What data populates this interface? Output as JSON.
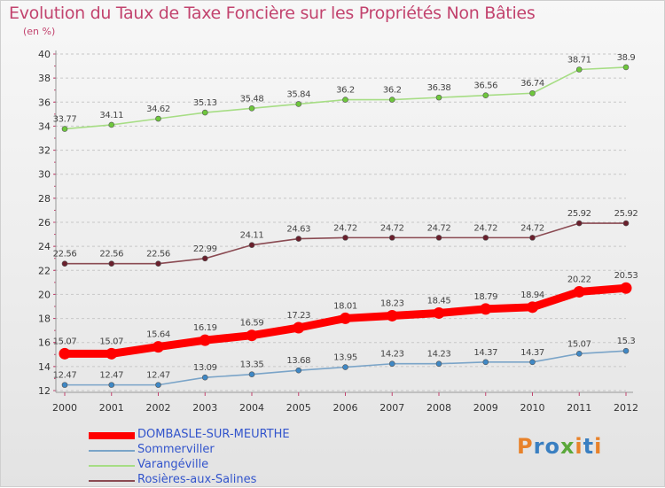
{
  "header": {
    "title": "Evolution du Taux de Taxe Foncière sur les Propriétés Non Bâties",
    "unit": "(en %)"
  },
  "logo": {
    "text": "Proxiti",
    "colors": [
      "#e8822a",
      "#3a7fc1",
      "#3a7fc1",
      "#5aa83a",
      "#e8822a",
      "#3a7fc1",
      "#e8822a"
    ]
  },
  "chart_data": {
    "type": "line",
    "title": "Evolution du Taux de Taxe Foncière sur les Propriétés Non Bâties",
    "ylabel": "(en %)",
    "xlabel": "",
    "x": [
      2000,
      2001,
      2002,
      2003,
      2004,
      2005,
      2006,
      2007,
      2008,
      2009,
      2010,
      2011,
      2012
    ],
    "ylim": [
      12,
      40
    ],
    "yticks": [
      12,
      14,
      16,
      18,
      20,
      22,
      24,
      26,
      28,
      30,
      32,
      34,
      36,
      38,
      40
    ],
    "grid": "horizontal",
    "legend_position": "bottom-left",
    "series": [
      {
        "name": "DOMBASLE-SUR-MEURTHE",
        "color": "#ff0000",
        "marker": "#ff0000",
        "bold": true,
        "values": [
          15.07,
          15.07,
          15.64,
          16.19,
          16.59,
          17.23,
          18.01,
          18.23,
          18.45,
          18.79,
          18.94,
          20.22,
          20.53
        ],
        "labels": [
          "15.07",
          "15.07",
          "15.64",
          "16.19",
          "16.59",
          "17.23",
          "18.01",
          "18.23",
          "18.45",
          "18.79",
          "18.94",
          "20.22",
          "20.53"
        ]
      },
      {
        "name": "Sommerviller",
        "color": "#7aa4c8",
        "marker": "#3f88c5",
        "bold": false,
        "values": [
          12.47,
          12.47,
          12.47,
          13.09,
          13.35,
          13.68,
          13.95,
          14.23,
          14.23,
          14.37,
          14.37,
          15.07,
          15.3
        ],
        "labels": [
          "12.47",
          "12.47",
          "12.47",
          "13.09",
          "13.35",
          "13.68",
          "13.95",
          "14.23",
          "14.23",
          "14.37",
          "14.37",
          "15.07",
          "15.3"
        ]
      },
      {
        "name": "Varangéville",
        "color": "#a6dd84",
        "marker": "#6ec73c",
        "bold": false,
        "values": [
          33.77,
          34.11,
          34.62,
          35.13,
          35.48,
          35.84,
          36.2,
          36.2,
          36.38,
          36.56,
          36.74,
          38.71,
          38.9
        ],
        "labels": [
          "33.77",
          "34.11",
          "34.62",
          "35.13",
          "35.48",
          "35.84",
          "36.2",
          "36.2",
          "36.38",
          "36.56",
          "36.74",
          "38.71",
          "38.9"
        ]
      },
      {
        "name": "Rosières-aux-Salines",
        "color": "#8a4a52",
        "marker": "#6a1f2c",
        "bold": false,
        "values": [
          22.56,
          22.56,
          22.56,
          22.99,
          24.11,
          24.63,
          24.72,
          24.72,
          24.72,
          24.72,
          24.72,
          25.92,
          25.92
        ],
        "labels": [
          "22.56",
          "22.56",
          "22.56",
          "22.99",
          "24.11",
          "24.63",
          "24.72",
          "24.72",
          "24.72",
          "24.72",
          "24.72",
          "25.92",
          "25.92"
        ]
      }
    ]
  },
  "legend": {
    "items": [
      {
        "label": "DOMBASLE-SUR-MEURTHE",
        "color": "#ff0000",
        "text_color": "#3355cc"
      },
      {
        "label": "Sommerviller",
        "color": "#7aa4c8",
        "text_color": "#3355cc"
      },
      {
        "label": "Varangéville",
        "color": "#a6dd84",
        "text_color": "#3355cc"
      },
      {
        "label": "Rosières-aux-Salines",
        "color": "#8a4a52",
        "text_color": "#3355cc"
      }
    ]
  }
}
